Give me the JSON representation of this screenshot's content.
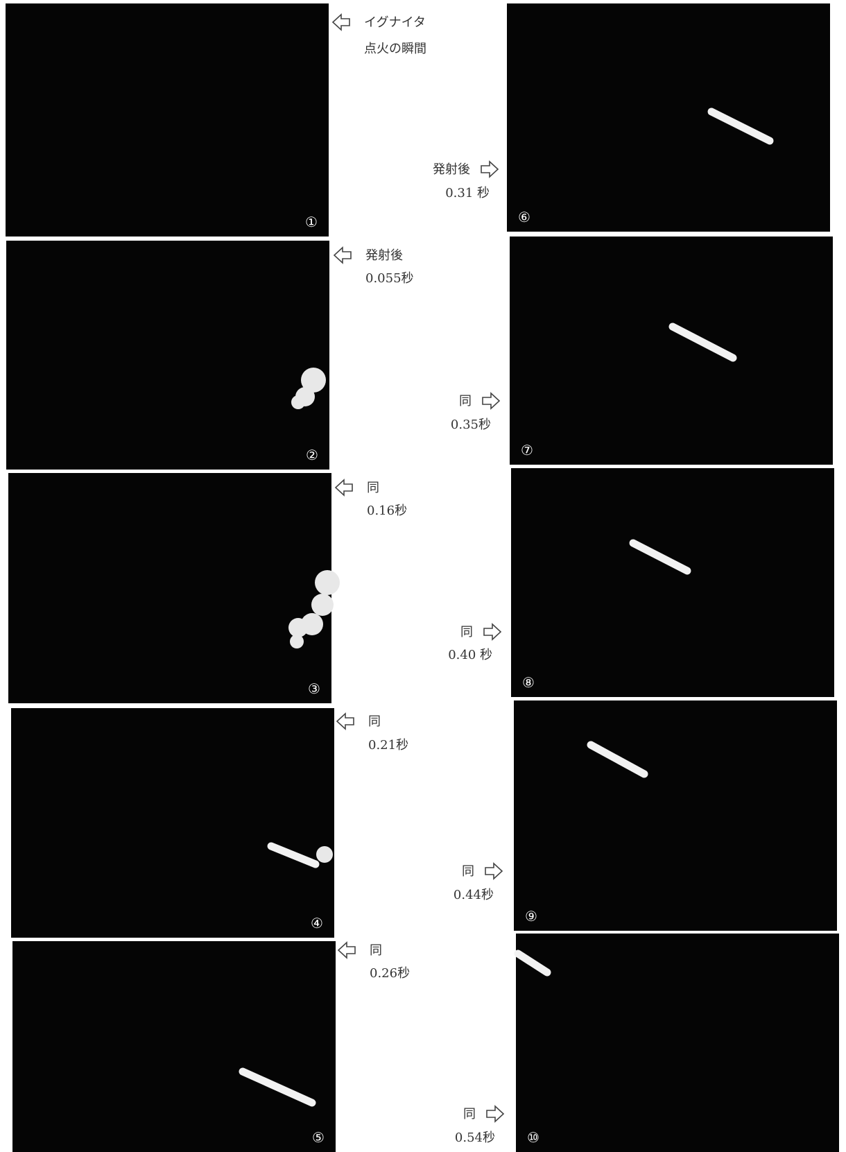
{
  "frames": [
    {
      "number": "①",
      "caption": [
        "イグナイタ",
        "点火の瞬間"
      ]
    },
    {
      "number": "②",
      "caption": [
        "発射後",
        "0.055秒"
      ]
    },
    {
      "number": "③",
      "caption": [
        "同",
        "0.16秒"
      ]
    },
    {
      "number": "④",
      "caption": [
        "同",
        "0.21秒"
      ]
    },
    {
      "number": "⑤",
      "caption": [
        "同",
        "0.26秒"
      ]
    },
    {
      "number": "⑥",
      "caption": [
        "発射後",
        "0.31 秒"
      ]
    },
    {
      "number": "⑦",
      "caption": [
        "同",
        "0.35秒"
      ]
    },
    {
      "number": "⑧",
      "caption": [
        "同",
        "0.40 秒"
      ]
    },
    {
      "number": "⑨",
      "caption": [
        "同",
        "0.44秒"
      ]
    },
    {
      "number": "⑩",
      "caption": [
        "同",
        "0.54秒"
      ]
    }
  ]
}
